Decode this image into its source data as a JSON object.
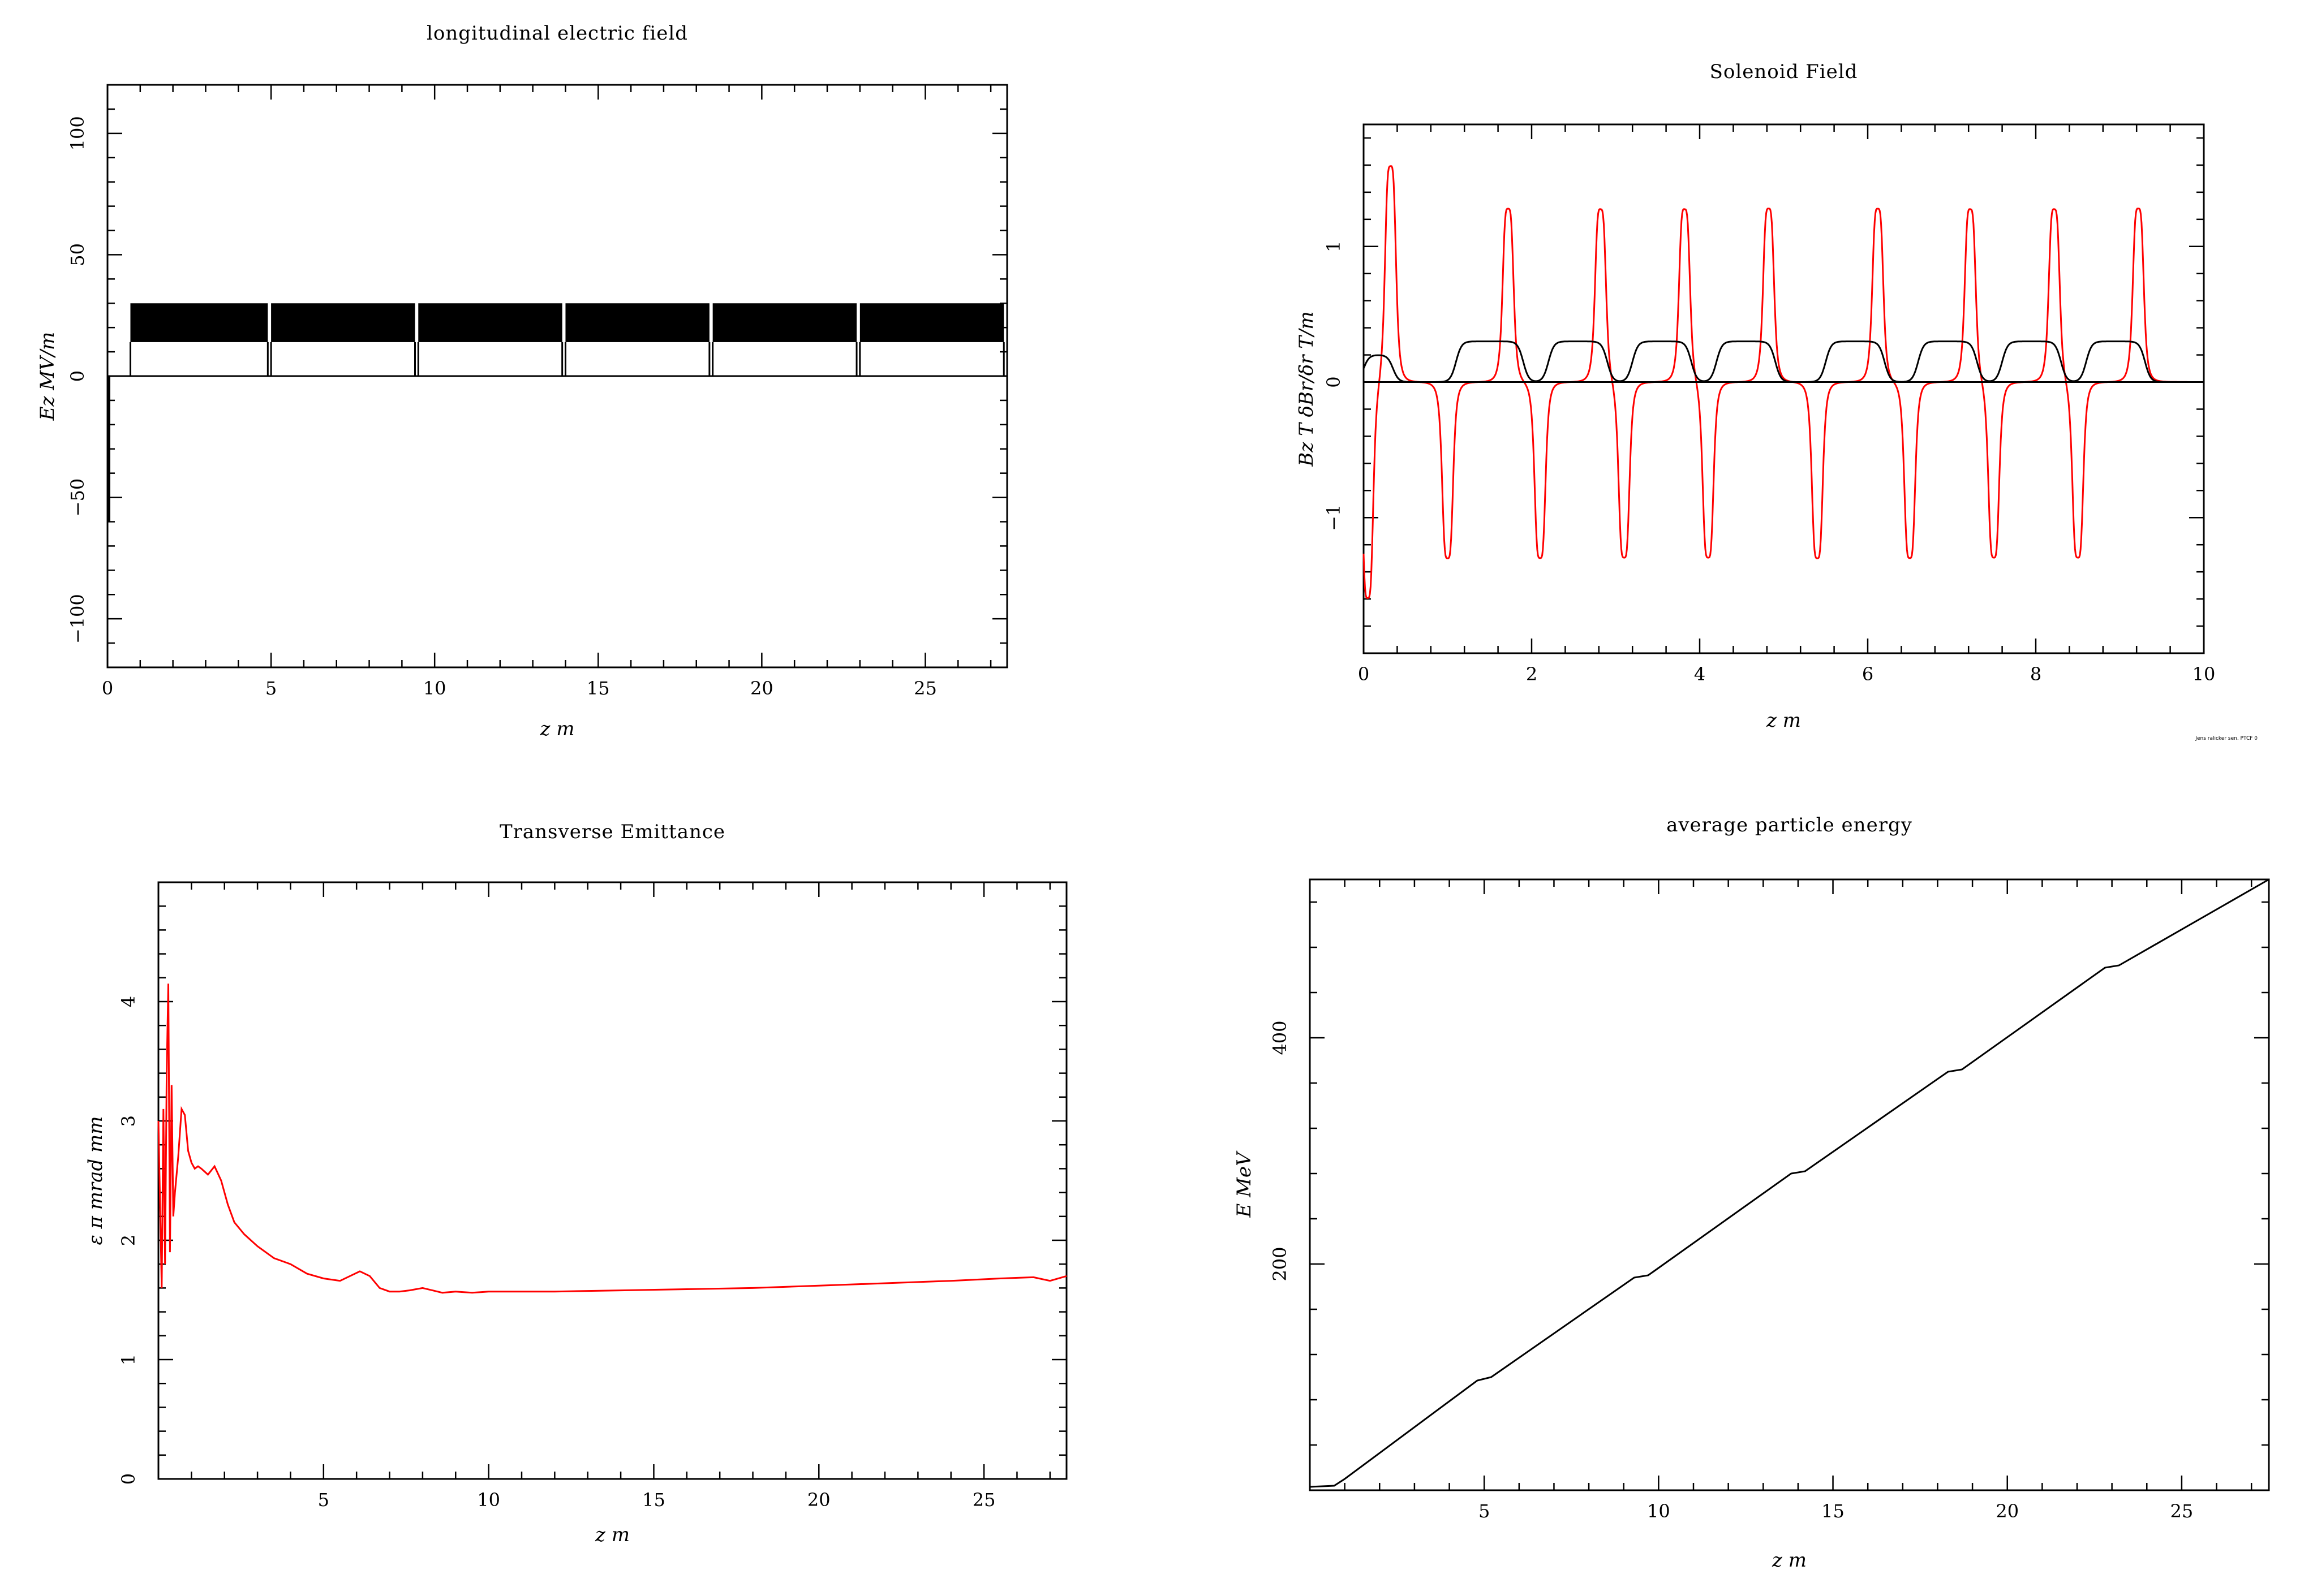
{
  "chart_data": [
    {
      "id": "ez",
      "type": "line",
      "title": "longitudinal electric field",
      "xlabel": "z  m",
      "ylabel": "Ez  MV/m",
      "xlim": [
        0,
        27.5
      ],
      "ylim": [
        -120,
        120
      ],
      "xticks": [
        0,
        5,
        10,
        15,
        20,
        25
      ],
      "xtick_labels": [
        "0",
        "5",
        "10",
        "15",
        "20",
        "25"
      ],
      "yticks": [
        -100,
        -50,
        0,
        50,
        100
      ],
      "ytick_labels": [
        "−100",
        "−50",
        "0",
        "50",
        "100"
      ],
      "grid": false,
      "series": [
        {
          "color": "#000000",
          "kind": "oscillation_bands",
          "bands": [
            [
              0.7,
              4.9
            ],
            [
              5.0,
              9.4
            ],
            [
              9.5,
              13.9
            ],
            [
              14.0,
              18.4
            ],
            [
              18.5,
              22.9
            ],
            [
              23.0,
              27.4
            ]
          ],
          "band_low": 14,
          "band_high": 30,
          "spike_min": -60
        }
      ]
    },
    {
      "id": "sol",
      "type": "line",
      "title": "Solenoid Field",
      "xlabel": "z  m",
      "ylabel": "Bz  T   δBr/δr  T/m",
      "xlim": [
        0,
        10
      ],
      "ylim": [
        -2,
        1.9
      ],
      "xticks": [
        0,
        2,
        4,
        6,
        8,
        10
      ],
      "xtick_labels": [
        "0",
        "2",
        "4",
        "6",
        "8",
        "10"
      ],
      "yticks": [
        -1,
        0,
        1
      ],
      "ytick_labels": [
        "−1",
        "0",
        "1"
      ],
      "grid": false,
      "credit": "Jens ralicker sen. PTCF 0",
      "series": [
        {
          "color": "#ff0000",
          "kind": "peaks",
          "peaks": [
            [
              0.05,
              -1.6
            ],
            [
              0.32,
              1.6
            ],
            [
              1.0,
              -1.3
            ],
            [
              1.72,
              1.28
            ],
            [
              2.1,
              -1.3
            ],
            [
              2.82,
              1.28
            ],
            [
              3.1,
              -1.3
            ],
            [
              3.82,
              1.28
            ],
            [
              4.1,
              -1.3
            ],
            [
              4.82,
              1.28
            ],
            [
              5.4,
              -1.3
            ],
            [
              6.12,
              1.28
            ],
            [
              6.5,
              -1.3
            ],
            [
              7.22,
              1.28
            ],
            [
              7.5,
              -1.3
            ],
            [
              8.22,
              1.28
            ],
            [
              8.5,
              -1.3
            ],
            [
              9.22,
              1.28
            ]
          ],
          "width": 0.07
        },
        {
          "color": "#000000",
          "kind": "plateaus",
          "plateaus": [
            [
              0.0,
              0.35,
              0.2
            ],
            [
              1.1,
              1.9,
              0.3
            ],
            [
              2.2,
              2.9,
              0.3
            ],
            [
              3.2,
              3.9,
              0.3
            ],
            [
              4.2,
              4.9,
              0.3
            ],
            [
              5.5,
              6.2,
              0.3
            ],
            [
              6.6,
              7.3,
              0.3
            ],
            [
              7.6,
              8.3,
              0.3
            ],
            [
              8.6,
              9.3,
              0.3
            ]
          ],
          "ramp": 0.1
        }
      ]
    },
    {
      "id": "emit",
      "type": "line",
      "title": "Transverse Emittance",
      "xlabel": "z  m",
      "ylabel": "ε  π  mrad  mm",
      "xlim": [
        0,
        27.5
      ],
      "ylim": [
        0,
        5
      ],
      "xticks": [
        5,
        10,
        15,
        20,
        25
      ],
      "xtick_labels": [
        "5",
        "10",
        "15",
        "20",
        "25"
      ],
      "yticks": [
        0,
        1,
        2,
        3,
        4
      ],
      "ytick_labels": [
        "0",
        "1",
        "2",
        "3",
        "4"
      ],
      "grid": false,
      "series": [
        {
          "color": "#ff0000",
          "x": [
            0.0,
            0.05,
            0.1,
            0.15,
            0.2,
            0.25,
            0.3,
            0.35,
            0.4,
            0.45,
            0.5,
            0.6,
            0.7,
            0.8,
            0.9,
            1.0,
            1.1,
            1.2,
            1.3,
            1.5,
            1.7,
            1.9,
            2.1,
            2.3,
            2.6,
            3.0,
            3.5,
            4.0,
            4.5,
            5.0,
            5.5,
            5.8,
            6.1,
            6.4,
            6.7,
            7.0,
            7.3,
            7.6,
            8.0,
            8.3,
            8.6,
            9.0,
            9.5,
            10.0,
            12.0,
            14.0,
            16.0,
            18.0,
            20.0,
            22.0,
            24.0,
            25.5,
            26.5,
            27.0,
            27.5
          ],
          "y": [
            3.0,
            2.3,
            1.6,
            3.1,
            1.8,
            3.4,
            4.15,
            1.9,
            3.3,
            2.2,
            2.4,
            2.7,
            3.1,
            3.05,
            2.75,
            2.65,
            2.6,
            2.62,
            2.6,
            2.55,
            2.62,
            2.5,
            2.3,
            2.15,
            2.05,
            1.95,
            1.85,
            1.8,
            1.72,
            1.68,
            1.66,
            1.7,
            1.74,
            1.7,
            1.6,
            1.57,
            1.57,
            1.58,
            1.6,
            1.58,
            1.56,
            1.57,
            1.56,
            1.57,
            1.57,
            1.58,
            1.59,
            1.6,
            1.62,
            1.64,
            1.66,
            1.68,
            1.69,
            1.66,
            1.7
          ]
        }
      ]
    },
    {
      "id": "energy",
      "type": "line",
      "title": "average particle energy",
      "xlabel": "z  m",
      "ylabel": "E  MeV",
      "xlim": [
        0,
        27.5
      ],
      "ylim": [
        0,
        540
      ],
      "xticks": [
        5,
        10,
        15,
        20,
        25
      ],
      "xtick_labels": [
        "5",
        "10",
        "15",
        "20",
        "25"
      ],
      "yticks": [
        200,
        400
      ],
      "ytick_labels": [
        "200",
        "400"
      ],
      "grid": false,
      "series": [
        {
          "color": "#000000",
          "x": [
            0.0,
            0.7,
            1.0,
            4.8,
            5.2,
            9.3,
            9.7,
            13.8,
            14.2,
            18.3,
            18.7,
            22.8,
            23.2,
            27.5
          ],
          "y": [
            3,
            4,
            10,
            97,
            100,
            188,
            190,
            280,
            282,
            370,
            372,
            462,
            464,
            550
          ]
        }
      ]
    }
  ]
}
